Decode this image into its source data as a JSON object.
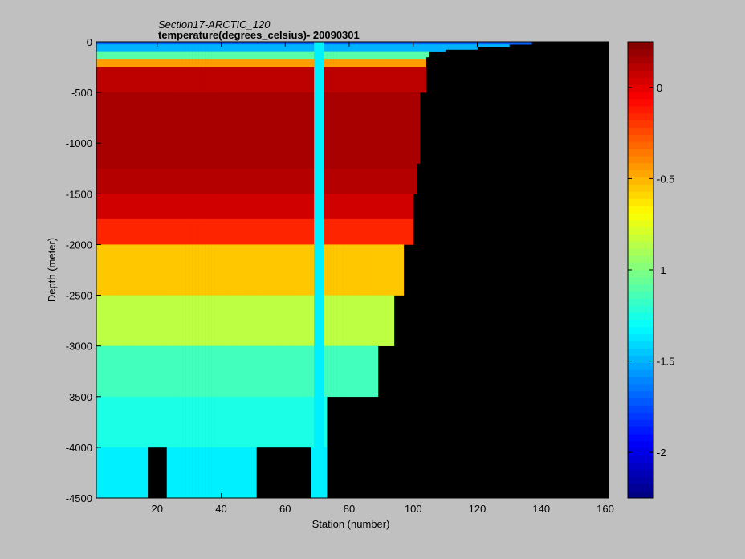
{
  "chart_data": {
    "type": "heatmap",
    "title": "Section17-ARCTIC_120",
    "subtitle": "temperature(degrees_celsius)- 20090301",
    "xlabel": "Station (number)",
    "ylabel": "Depth (meter)",
    "xlim": [
      1,
      161
    ],
    "ylim": [
      -4500,
      0
    ],
    "xticks": [
      20,
      40,
      60,
      80,
      100,
      120,
      140,
      160
    ],
    "yticks": [
      0,
      -500,
      -1000,
      -1500,
      -2000,
      -2500,
      -3000,
      -3500,
      -4000,
      -4500
    ],
    "colorbar": {
      "colormap": "jet",
      "range": [
        -2.25,
        0.25
      ],
      "ticks": [
        0,
        -0.5,
        -1,
        -1.5,
        -2
      ]
    },
    "no_data_color": "#000000",
    "layers": [
      {
        "depth": [
          0,
          -25
        ],
        "value": -1.7
      },
      {
        "depth": [
          -25,
          -100
        ],
        "value": -1.5
      },
      {
        "depth": [
          -100,
          -175
        ],
        "value": -1.1
      },
      {
        "depth": [
          -175,
          -250
        ],
        "value": -0.45
      },
      {
        "depth": [
          -250,
          -500
        ],
        "value": 0.1
      },
      {
        "depth": [
          -500,
          -1000
        ],
        "value": 0.15
      },
      {
        "depth": [
          -1000,
          -1250
        ],
        "value": 0.15
      },
      {
        "depth": [
          -1250,
          -1500
        ],
        "value": 0.12
      },
      {
        "depth": [
          -1500,
          -1750
        ],
        "value": 0.05
      },
      {
        "depth": [
          -1750,
          -2000
        ],
        "value": -0.15
      },
      {
        "depth": [
          -2000,
          -2500
        ],
        "value": -0.55
      },
      {
        "depth": [
          -2500,
          -3000
        ],
        "value": -0.85
      },
      {
        "depth": [
          -3000,
          -3500
        ],
        "value": -1.15
      },
      {
        "depth": [
          -3500,
          -4000
        ],
        "value": -1.25
      },
      {
        "depth": [
          -4000,
          -4500
        ],
        "value": -1.35
      }
    ],
    "bottom_depth_by_station": [
      [
        1,
        -4500
      ],
      [
        16,
        -4500
      ],
      [
        17,
        -4000
      ],
      [
        22,
        -4000
      ],
      [
        23,
        -4500
      ],
      [
        50,
        -4500
      ],
      [
        51,
        -4000
      ],
      [
        67,
        -4000
      ],
      [
        68,
        -4500
      ],
      [
        72,
        -4500
      ],
      [
        73,
        -3500
      ],
      [
        88,
        -3500
      ],
      [
        89,
        -3000
      ],
      [
        93,
        -3000
      ],
      [
        94,
        -2500
      ],
      [
        97,
        -2000
      ],
      [
        100,
        -1500
      ],
      [
        101,
        -1200
      ],
      [
        102,
        -500
      ],
      [
        104,
        -150
      ],
      [
        105,
        -100
      ],
      [
        110,
        -75
      ],
      [
        120,
        -50
      ],
      [
        130,
        -25
      ],
      [
        137,
        0
      ]
    ],
    "highlight_column": {
      "x": [
        69,
        72
      ],
      "value": -1.35
    }
  }
}
